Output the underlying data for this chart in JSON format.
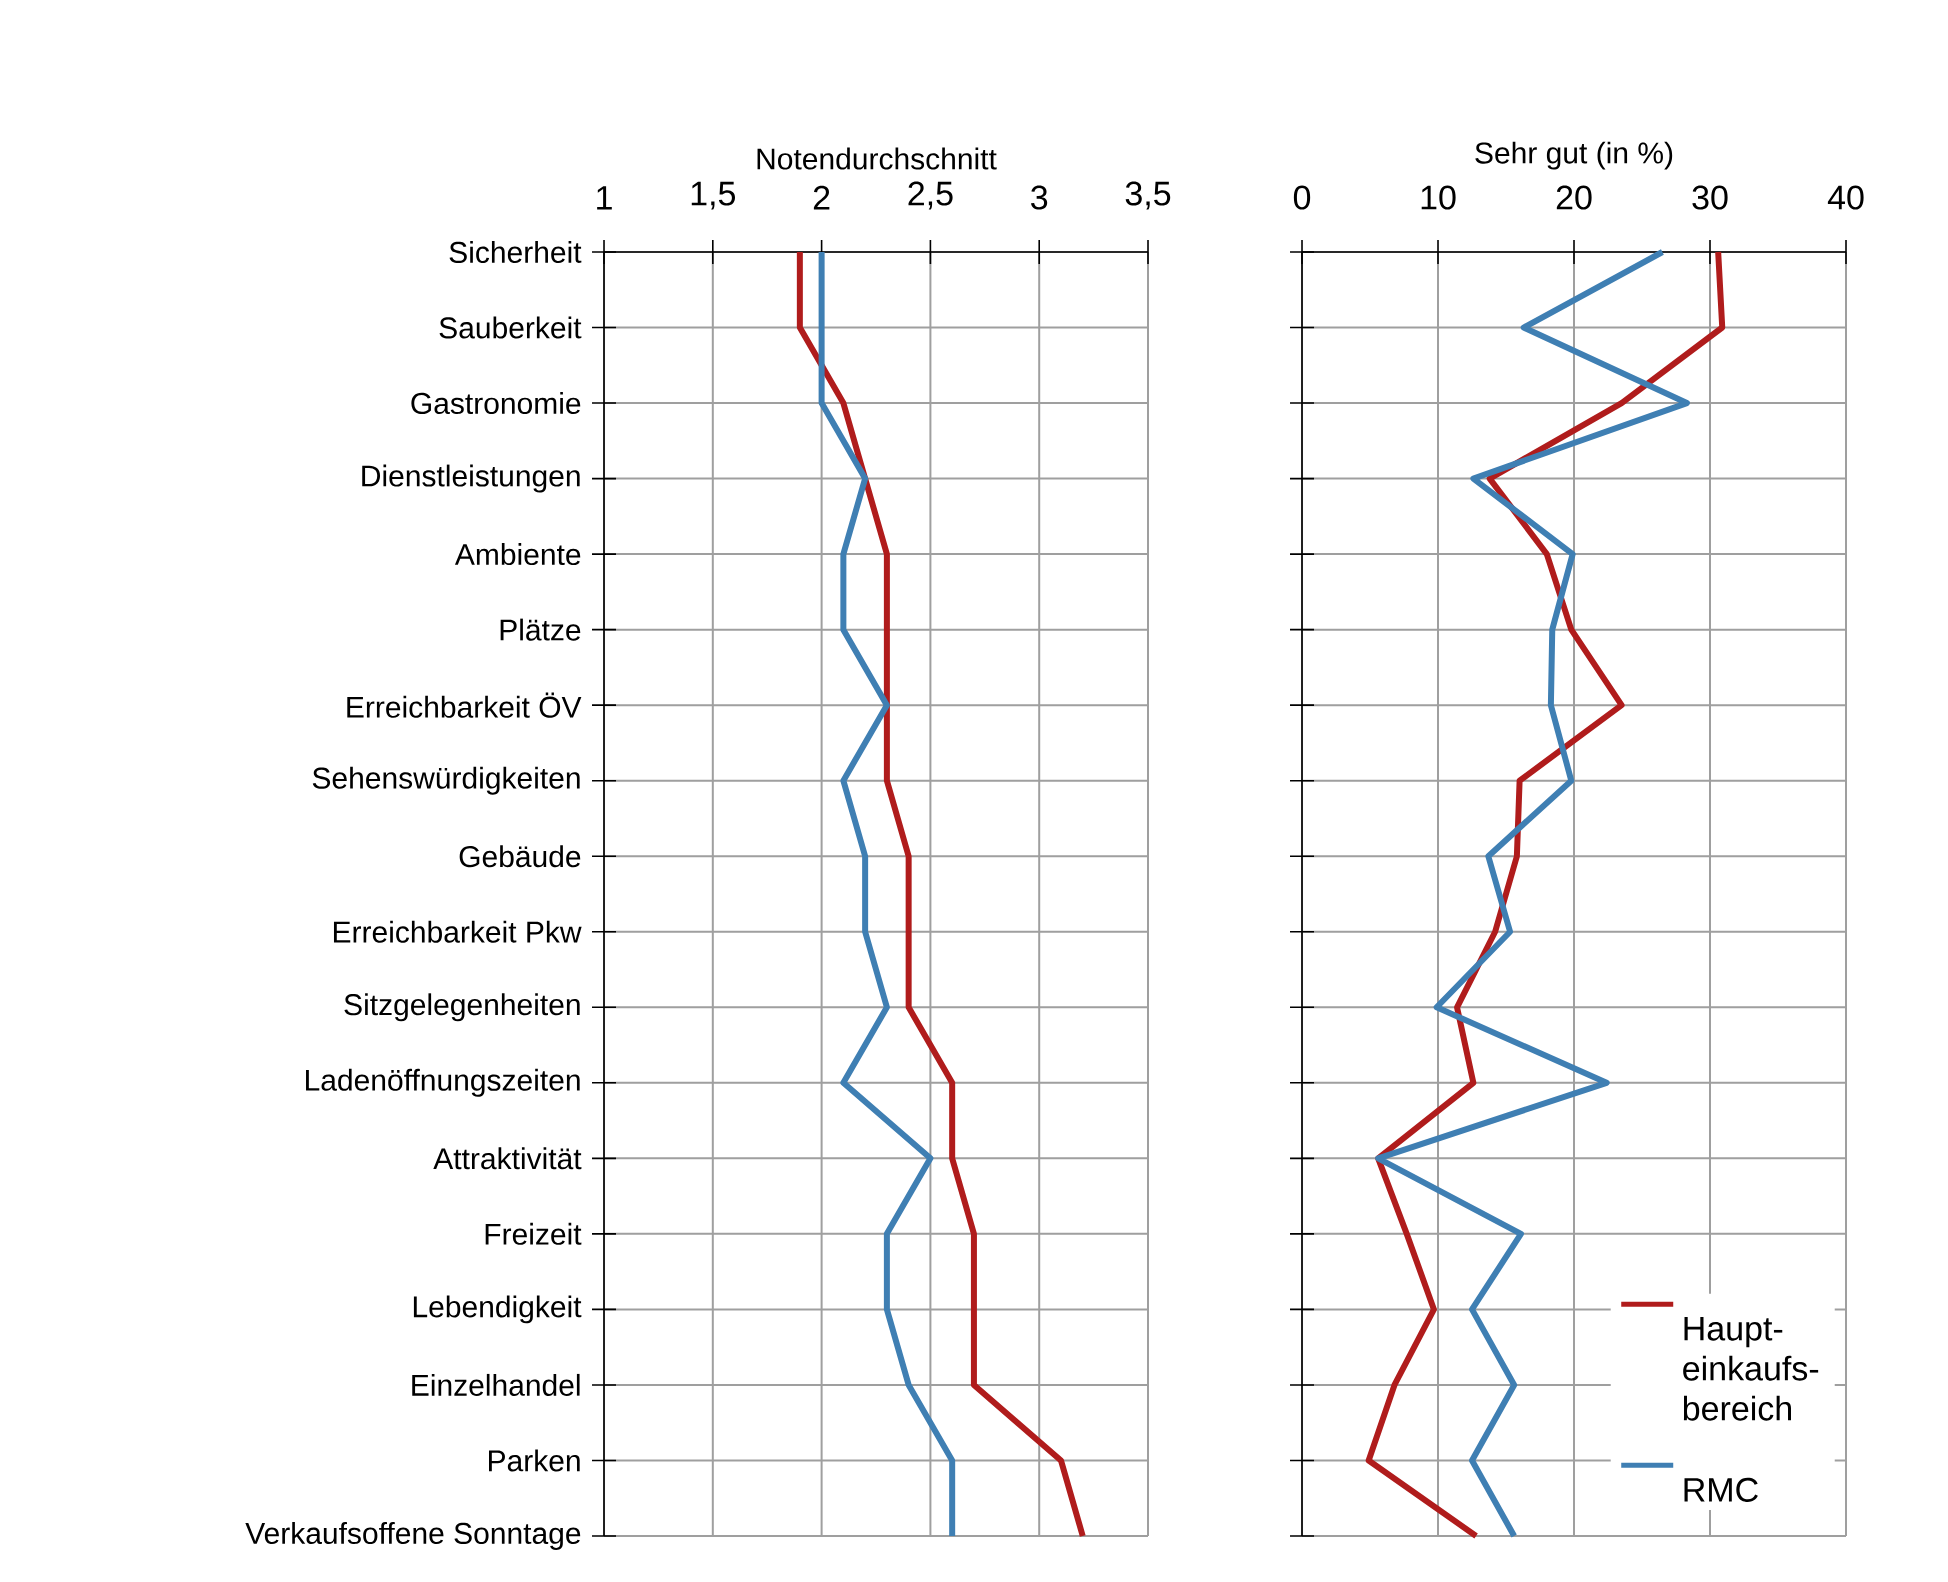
{
  "chart_data": [
    {
      "type": "line",
      "orientation": "horizontal",
      "xlabel": "Notendurchschnitt",
      "categories": [
        "Sicherheit",
        "Sauberkeit",
        "Gastronomie",
        "Dienstleistungen",
        "Ambiente",
        "Plätze",
        "Erreichbarkeit ÖV",
        "Sehenswürdigkeiten",
        "Gebäude",
        "Erreichbarkeit Pkw",
        "Sitzgelegenheiten",
        "Ladenöffnungszeiten",
        "Attraktivität",
        "Freizeit",
        "Lebendigkeit",
        "Einzelhandel",
        "Parken",
        "Verkaufsoffene Sonntage"
      ],
      "xlim": [
        1,
        3.5
      ],
      "xticks": [
        1,
        {
          "value": 1.5,
          "label": "1,5"
        },
        2,
        {
          "value": 2.5,
          "label": "2,5"
        },
        3,
        {
          "value": 3.5,
          "label": "3,5"
        }
      ],
      "grid": true,
      "legend": false,
      "marker": "none",
      "series": [
        {
          "color": "#b01c1c",
          "values": [
            1.9,
            1.9,
            2.1,
            2.2,
            2.3,
            2.3,
            2.3,
            2.3,
            2.4,
            2.4,
            2.4,
            2.6,
            2.6,
            2.7,
            2.7,
            2.7,
            3.1,
            3.2
          ]
        },
        {
          "color": "#3f7fb3",
          "values": [
            2.0,
            2.0,
            2.0,
            2.2,
            2.1,
            2.1,
            2.3,
            2.1,
            2.2,
            2.2,
            2.3,
            2.1,
            2.5,
            2.3,
            2.3,
            2.4,
            2.6,
            2.6
          ]
        }
      ]
    },
    {
      "type": "line",
      "orientation": "horizontal",
      "xlabel": "Sehr gut (in %)",
      "categories": [
        null,
        null,
        null,
        null,
        null,
        null,
        null,
        null,
        null,
        null,
        null,
        null,
        null,
        null,
        null,
        null,
        null,
        null
      ],
      "xlim": [
        0,
        40
      ],
      "xticks": [
        0,
        10,
        20,
        30,
        40
      ],
      "tick_labels": "x",
      "grid": true,
      "legend": "bottom right",
      "marker": "none",
      "series": [
        {
          "name": "Haupt-einkaufs-bereich",
          "color": "#b01c1c",
          "values": [
            30.6,
            30.9,
            23.5,
            13.8,
            18.0,
            19.8,
            23.5,
            16.0,
            15.8,
            14.2,
            11.4,
            12.6,
            5.6,
            7.7,
            9.7,
            6.8,
            4.9,
            12.8
          ]
        },
        {
          "name": "RMC",
          "color": "#3f7fb3",
          "values": [
            26.5,
            16.3,
            28.3,
            12.6,
            19.9,
            18.4,
            18.3,
            19.8,
            13.7,
            15.3,
            9.9,
            22.4,
            5.6,
            16.1,
            12.5,
            15.6,
            12.5,
            15.6
          ]
        }
      ]
    }
  ]
}
